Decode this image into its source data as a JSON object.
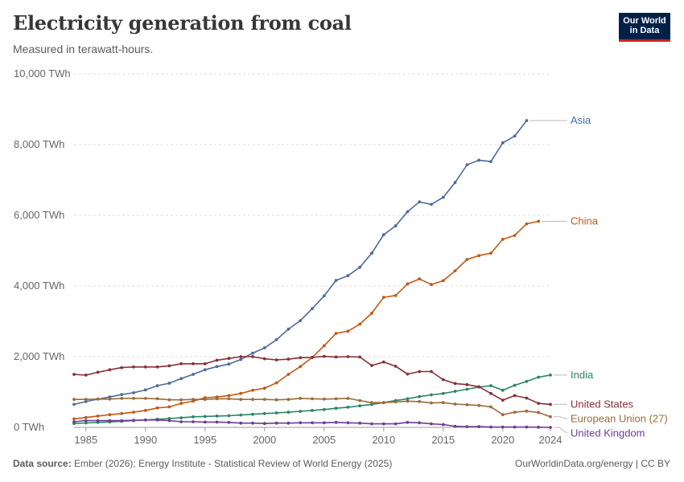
{
  "header": {
    "title": "Electricity generation from coal",
    "subtitle": "Measured in terawatt-hours.",
    "logo_line1": "Our World",
    "logo_line2": "in Data"
  },
  "footer": {
    "source_label": "Data source:",
    "source_text": "Ember (2026); Energy Institute - Statistical Review of World Energy (2025)",
    "credit": "OurWorldinData.org/energy | CC BY"
  },
  "chart_data": {
    "type": "line",
    "title": "Electricity generation from coal",
    "subtitle": "Measured in terawatt-hours.",
    "ylim": [
      0,
      10000
    ],
    "y_ticks": [
      0,
      2000,
      4000,
      6000,
      8000,
      10000
    ],
    "y_tick_labels": [
      "0 TWh",
      "2,000 TWh",
      "4,000 TWh",
      "6,000 TWh",
      "8,000 TWh",
      "10,000 TWh"
    ],
    "x_ticks": [
      1985,
      1990,
      1995,
      2000,
      2005,
      2010,
      2015,
      2020,
      2024
    ],
    "x": [
      1984,
      1985,
      1986,
      1987,
      1988,
      1989,
      1990,
      1991,
      1992,
      1993,
      1994,
      1995,
      1996,
      1997,
      1998,
      1999,
      2000,
      2001,
      2002,
      2003,
      2004,
      2005,
      2006,
      2007,
      2008,
      2009,
      2010,
      2011,
      2012,
      2013,
      2014,
      2015,
      2016,
      2017,
      2018,
      2019,
      2020,
      2021,
      2022,
      2023,
      2024
    ],
    "grid": "horizontal",
    "series": [
      {
        "name": "Asia",
        "color": "#4c6a9c",
        "values": [
          650,
          730,
          800,
          860,
          930,
          980,
          1060,
          1180,
          1250,
          1380,
          1500,
          1630,
          1720,
          1790,
          1920,
          2100,
          2250,
          2480,
          2780,
          3020,
          3360,
          3720,
          4160,
          4290,
          4530,
          4930,
          5450,
          5700,
          6100,
          6380,
          6310,
          6510,
          6930,
          7430,
          7560,
          7520,
          8050,
          8240,
          8680,
          null,
          null
        ]
      },
      {
        "name": "China",
        "color": "#c15065",
        "line_color": "#c05917",
        "values": [
          240,
          280,
          320,
          360,
          390,
          430,
          480,
          550,
          580,
          680,
          740,
          840,
          860,
          900,
          960,
          1050,
          1110,
          1260,
          1500,
          1720,
          1980,
          2310,
          2660,
          2720,
          2920,
          3230,
          3680,
          3730,
          4060,
          4200,
          4040,
          4150,
          4430,
          4750,
          4860,
          4930,
          5320,
          5430,
          5760,
          5830,
          null
        ]
      },
      {
        "name": "India",
        "color": "#2c8465",
        "values": [
          null,
          null,
          null,
          null,
          null,
          null,
          null,
          null,
          null,
          null,
          null,
          null,
          null,
          null,
          null,
          null,
          null,
          null,
          null,
          null,
          null,
          null,
          null,
          null,
          null,
          null,
          null,
          null,
          null,
          null,
          null,
          null,
          null,
          null,
          null,
          null,
          null,
          null,
          null,
          null,
          null
        ]
      },
      {
        "name": "United States",
        "color": "#883039",
        "values": [
          null,
          null,
          null,
          null,
          null,
          null,
          null,
          null,
          null,
          null,
          null,
          null,
          null,
          null,
          null,
          null,
          null,
          null,
          null,
          null,
          null,
          null,
          null,
          null,
          null,
          null,
          null,
          null,
          null,
          null,
          null,
          null,
          null,
          null,
          null,
          null,
          null,
          null,
          null,
          null,
          null
        ]
      },
      {
        "name": "European Union (27)",
        "color": "#996d39",
        "values": [
          null,
          null,
          null,
          null,
          null,
          null,
          null,
          null,
          null,
          null,
          null,
          null,
          null,
          null,
          null,
          null,
          null,
          null,
          null,
          null,
          null,
          null,
          null,
          null,
          null,
          null,
          null,
          null,
          null,
          null,
          null,
          null,
          null,
          null,
          null,
          null,
          null,
          null,
          null,
          null,
          null
        ]
      },
      {
        "name": "United Kingdom",
        "color": "#6d3e91",
        "values": [
          null,
          null,
          null,
          null,
          null,
          null,
          null,
          null,
          null,
          null,
          null,
          null,
          null,
          null,
          null,
          null,
          null,
          null,
          null,
          null,
          null,
          null,
          null,
          null,
          null,
          null,
          null,
          null,
          null,
          null,
          null,
          null,
          null,
          null,
          null,
          null,
          null,
          null,
          null,
          null,
          null
        ]
      }
    ]
  }
}
